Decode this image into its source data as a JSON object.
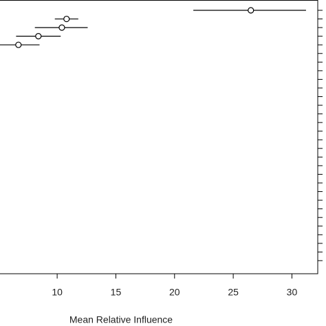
{
  "chart_data": {
    "type": "dotplot",
    "x_label": "Mean Relative Influence",
    "categories": [
      null,
      null,
      null,
      null,
      null,
      null,
      null,
      null,
      null,
      null,
      null,
      null,
      null,
      null,
      null,
      null,
      null,
      null,
      null,
      null,
      null,
      null,
      null,
      null,
      null,
      null,
      null,
      null,
      null,
      null
    ],
    "values": [
      26.5,
      10.8,
      10.4,
      8.4,
      6.7,
      null,
      null,
      null,
      null,
      null,
      null,
      null,
      null,
      null,
      null,
      null,
      null,
      null,
      null,
      null,
      null,
      null,
      null,
      null,
      null,
      null,
      null,
      null,
      null,
      null
    ],
    "lower": [
      21.6,
      9.8,
      8.1,
      6.5,
      5.1,
      null,
      null,
      null,
      null,
      null,
      null,
      null,
      null,
      null,
      null,
      null,
      null,
      null,
      null,
      null,
      null,
      null,
      null,
      null,
      null,
      null,
      null,
      null,
      null,
      null
    ],
    "upper": [
      31.2,
      11.8,
      12.6,
      10.3,
      8.5,
      null,
      null,
      null,
      null,
      null,
      null,
      null,
      null,
      null,
      null,
      null,
      null,
      null,
      null,
      null,
      null,
      null,
      null,
      null,
      null,
      null,
      null,
      null,
      null,
      null
    ],
    "color": "#000000",
    "xlim": [
      5.13,
      32.2
    ],
    "xticks": [
      10,
      15,
      20,
      25,
      30
    ]
  }
}
